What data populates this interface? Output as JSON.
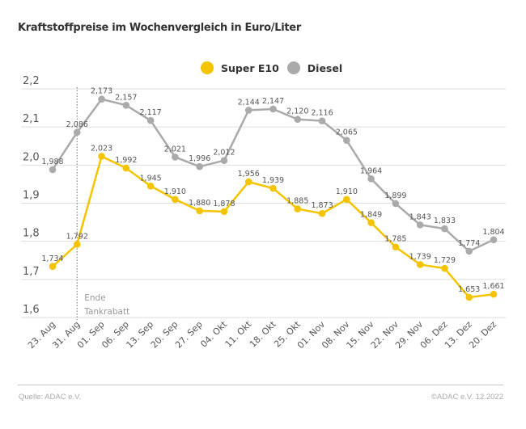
{
  "chart_data": {
    "type": "line",
    "title": "Kraftstoffpreise im Wochenvergleich in Euro/Liter",
    "xlabel": "",
    "ylabel": "",
    "ylim": [
      1.6,
      2.2
    ],
    "yticks": [
      "2,2",
      "2,1",
      "2,0",
      "1,9",
      "1,8",
      "1,7",
      "1,6"
    ],
    "ytick_values": [
      2.2,
      2.1,
      2.0,
      1.9,
      1.8,
      1.7,
      1.6
    ],
    "grid": true,
    "legend_placement": "top-center",
    "categories": [
      "23. Aug",
      "31. Aug",
      "01. Sep",
      "06. Sep",
      "13. Sep",
      "20. Sep",
      "27. Sep",
      "04. Okt",
      "11. Okt",
      "18. Okt",
      "25. Okt",
      "01. Nov",
      "08. Nov",
      "15. Nov",
      "22. Nov",
      "29. Nov",
      "06. Dez",
      "13. Dez",
      "20. Dez"
    ],
    "series": [
      {
        "name": "Super E10",
        "color": "#f5c400",
        "values": [
          1.734,
          1.792,
          2.023,
          1.992,
          1.945,
          1.91,
          1.88,
          1.878,
          1.956,
          1.939,
          1.885,
          1.873,
          1.91,
          1.849,
          1.785,
          1.739,
          1.729,
          1.653,
          1.661
        ]
      },
      {
        "name": "Diesel",
        "color": "#aaaaaa",
        "values": [
          1.988,
          2.086,
          2.173,
          2.157,
          2.117,
          2.021,
          1.996,
          2.012,
          2.144,
          2.147,
          2.12,
          2.116,
          2.065,
          1.964,
          1.899,
          1.843,
          1.833,
          1.774,
          1.804
        ]
      }
    ],
    "annotation": {
      "category": "31. Aug",
      "line1": "Ende",
      "line2": "Tankrabatt"
    }
  },
  "footer": {
    "source": "Quelle: ADAC e.V.",
    "copyright": "©ADAC e.V.  12.2022"
  }
}
